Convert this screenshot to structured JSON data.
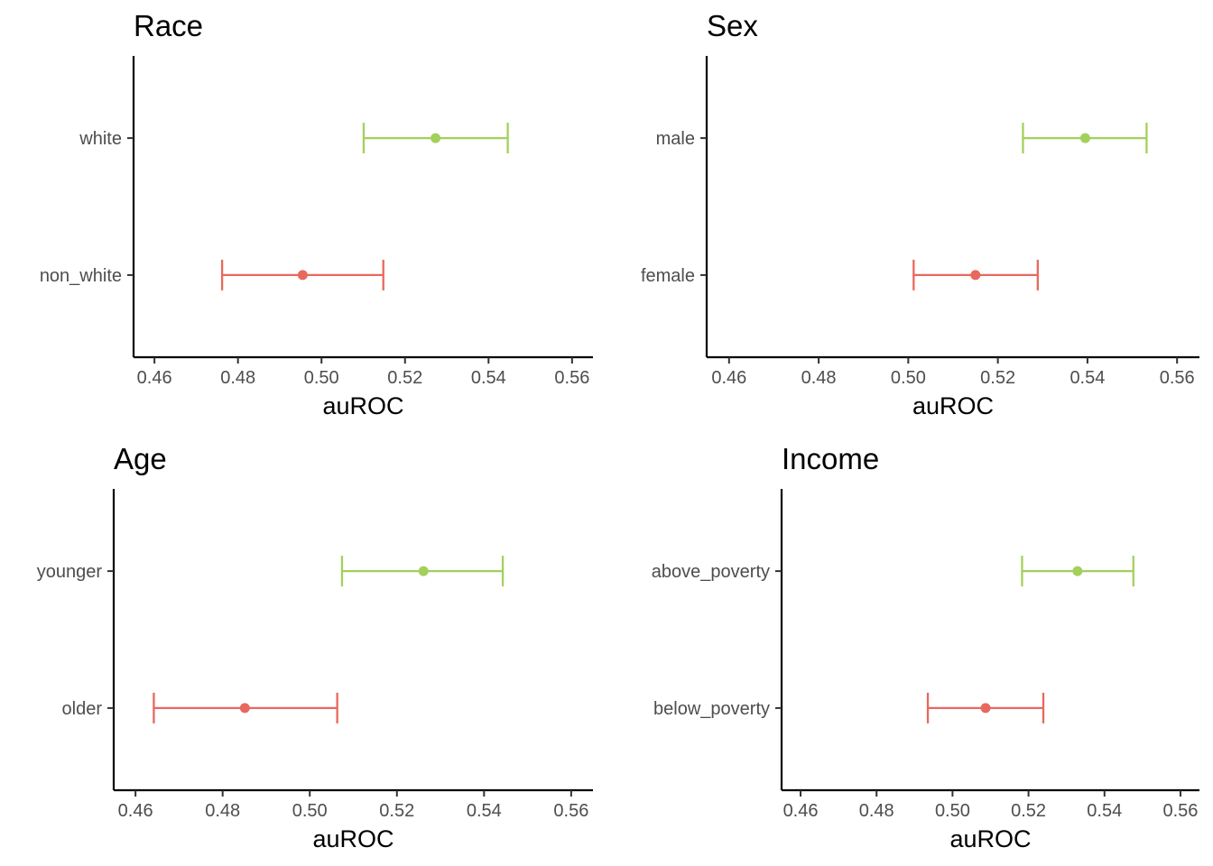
{
  "chart_data": [
    {
      "type": "errorbar",
      "title": "Race",
      "xlabel": "auROC",
      "ylabel": "",
      "xlim": [
        0.455,
        0.565
      ],
      "xticks": [
        0.46,
        0.48,
        0.5,
        0.52,
        0.54,
        0.56
      ],
      "xtick_labels": [
        "0.46",
        "0.48",
        "0.50",
        "0.52",
        "0.54",
        "0.56"
      ],
      "categories": [
        "non_white",
        "white"
      ],
      "points": [
        {
          "category": "non_white",
          "value": 0.4955,
          "lower": 0.4762,
          "upper": 0.5148,
          "color": "#E8685D"
        },
        {
          "category": "white",
          "value": 0.5273,
          "lower": 0.5101,
          "upper": 0.5446,
          "color": "#A3D05B"
        }
      ]
    },
    {
      "type": "errorbar",
      "title": "Sex",
      "xlabel": "auROC",
      "ylabel": "",
      "xlim": [
        0.455,
        0.565
      ],
      "xticks": [
        0.46,
        0.48,
        0.5,
        0.52,
        0.54,
        0.56
      ],
      "xtick_labels": [
        "0.46",
        "0.48",
        "0.50",
        "0.52",
        "0.54",
        "0.56"
      ],
      "categories": [
        "female",
        "male"
      ],
      "points": [
        {
          "category": "female",
          "value": 0.515,
          "lower": 0.5012,
          "upper": 0.5289,
          "color": "#E8685D"
        },
        {
          "category": "male",
          "value": 0.5395,
          "lower": 0.5256,
          "upper": 0.5532,
          "color": "#A3D05B"
        }
      ]
    },
    {
      "type": "errorbar",
      "title": "Age",
      "xlabel": "auROC",
      "ylabel": "",
      "xlim": [
        0.455,
        0.565
      ],
      "xticks": [
        0.46,
        0.48,
        0.5,
        0.52,
        0.54,
        0.56
      ],
      "xtick_labels": [
        "0.46",
        "0.48",
        "0.50",
        "0.52",
        "0.54",
        "0.56"
      ],
      "categories": [
        "older",
        "younger"
      ],
      "points": [
        {
          "category": "older",
          "value": 0.4851,
          "lower": 0.4642,
          "upper": 0.5063,
          "color": "#E8685D"
        },
        {
          "category": "younger",
          "value": 0.5261,
          "lower": 0.5074,
          "upper": 0.5443,
          "color": "#A3D05B"
        }
      ]
    },
    {
      "type": "errorbar",
      "title": "Income",
      "xlabel": "auROC",
      "ylabel": "",
      "xlim": [
        0.455,
        0.565
      ],
      "xticks": [
        0.46,
        0.48,
        0.5,
        0.52,
        0.54,
        0.56
      ],
      "xtick_labels": [
        "0.46",
        "0.48",
        "0.50",
        "0.52",
        "0.54",
        "0.56"
      ],
      "categories": [
        "below_poverty",
        "above_poverty"
      ],
      "points": [
        {
          "category": "below_poverty",
          "value": 0.5087,
          "lower": 0.4935,
          "upper": 0.5239,
          "color": "#E8685D"
        },
        {
          "category": "above_poverty",
          "value": 0.5329,
          "lower": 0.5183,
          "upper": 0.5476,
          "color": "#A3D05B"
        }
      ]
    }
  ]
}
